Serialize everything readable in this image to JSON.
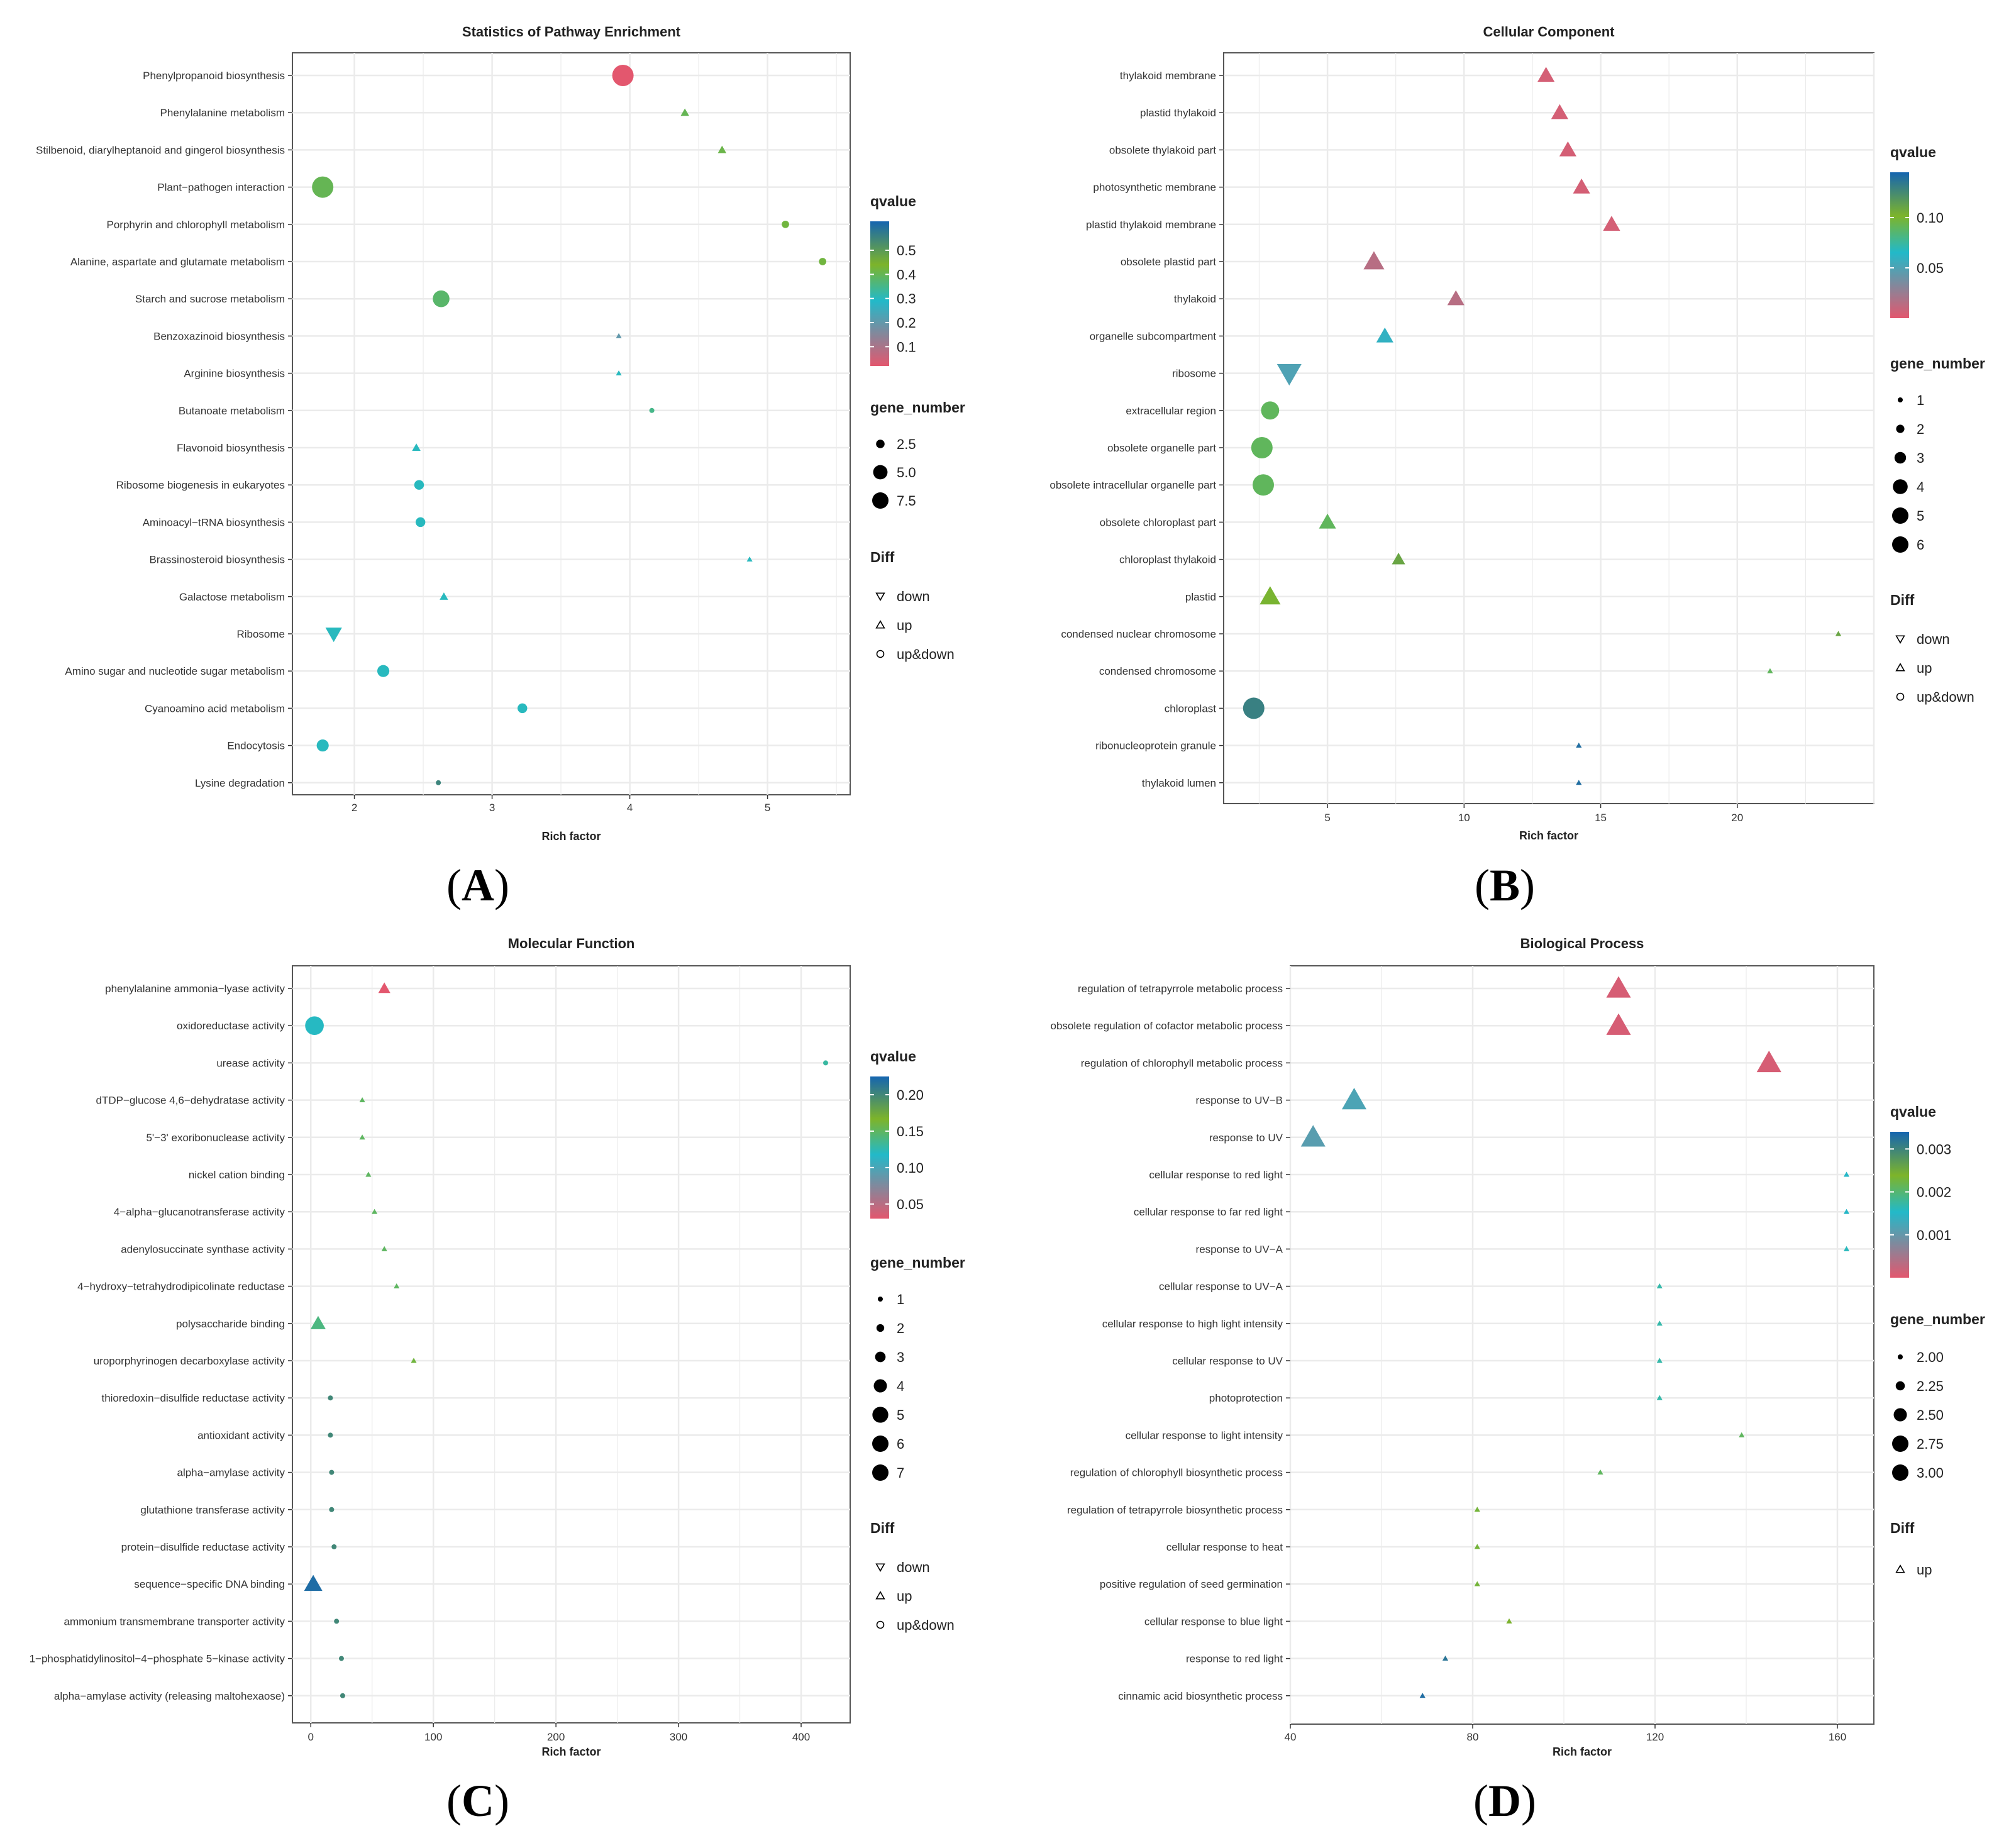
{
  "colors": {
    "q_high": "#1565b0",
    "q_upper": "#22b9c9",
    "q_mid": "#7db42a",
    "q_low": "#e3576e",
    "grid": "#ebebeb",
    "frame": "#555555"
  },
  "chart_data": [
    {
      "type": "scatter",
      "panel_label": "A",
      "title": "Statistics of Pathway Enrichment",
      "xlabel": "Rich factor",
      "xlim": [
        1.55,
        5.6
      ],
      "xticks": [
        2,
        3,
        4,
        5
      ],
      "categories": [
        "Phenylpropanoid biosynthesis",
        "Phenylalanine metabolism",
        "Stilbenoid, diarylheptanoid and gingerol biosynthesis",
        "Plant−pathogen interaction",
        "Porphyrin and chlorophyll metabolism",
        "Alanine, aspartate and glutamate metabolism",
        "Starch and sucrose metabolism",
        "Benzoxazinoid biosynthesis",
        "Arginine biosynthesis",
        "Butanoate metabolism",
        "Flavonoid biosynthesis",
        "Ribosome biogenesis in eukaryotes",
        "Aminoacyl−tRNA biosynthesis",
        "Brassinosteroid biosynthesis",
        "Galactose metabolism",
        "Ribosome",
        "Amino sugar and nucleotide sugar metabolism",
        "Cyanoamino acid metabolism",
        "Endocytosis",
        "Lysine degradation"
      ],
      "rich_factor": [
        3.95,
        4.4,
        4.67,
        1.77,
        5.13,
        5.4,
        2.63,
        3.92,
        3.92,
        4.16,
        2.45,
        2.47,
        2.48,
        4.87,
        2.65,
        1.85,
        2.21,
        3.22,
        1.77,
        2.61
      ],
      "gene_number": [
        8,
        2,
        2,
        8,
        2,
        2,
        6,
        1,
        1,
        1,
        2,
        3,
        3,
        1,
        2,
        5,
        4,
        3,
        4,
        1
      ],
      "qvalue": [
        0.02,
        0.4,
        0.41,
        0.4,
        0.42,
        0.42,
        0.38,
        0.2,
        0.3,
        0.35,
        0.3,
        0.3,
        0.3,
        0.3,
        0.3,
        0.3,
        0.3,
        0.3,
        0.3,
        0.55
      ],
      "diff": [
        "up&down",
        "up",
        "up",
        "up&down",
        "up&down",
        "up&down",
        "up&down",
        "up",
        "up",
        "up&down",
        "up",
        "up&down",
        "up&down",
        "up",
        "up",
        "down",
        "up&down",
        "up&down",
        "up&down",
        "up&down"
      ],
      "q_range": [
        0.02,
        0.62
      ],
      "size_range": [
        1,
        8
      ],
      "legend": {
        "qvalue_title": "qvalue",
        "qvalue_ticks": [
          0.5,
          0.4,
          0.3,
          0.2,
          0.1
        ],
        "qvalue_tick_labels": [
          "0.5",
          "0.4",
          "0.3",
          "0.2",
          "0.1"
        ],
        "size_title": "gene_number",
        "size_values": [
          2.5,
          5,
          7.5
        ],
        "size_labels": [
          "2.5",
          "5.0",
          "7.5"
        ],
        "diff_title": "Diff",
        "diff_items": [
          "down",
          "up",
          "up&down"
        ]
      }
    },
    {
      "type": "scatter",
      "panel_label": "B",
      "title": "Cellular Component",
      "xlabel": "Rich factor",
      "xlim": [
        1.2,
        25
      ],
      "xticks": [
        5,
        10,
        15,
        20
      ],
      "categories": [
        "thylakoid membrane",
        "plastid thylakoid",
        "obsolete thylakoid part",
        "photosynthetic membrane",
        "plastid thylakoid membrane",
        "obsolete plastid part",
        "thylakoid",
        "organelle subcompartment",
        "ribosome",
        "extracellular region",
        "obsolete organelle part",
        "obsolete intracellular organelle part",
        "obsolete chloroplast part",
        "chloroplast thylakoid",
        "plastid",
        "condensed nuclear chromosome",
        "condensed chromosome",
        "chloroplast",
        "ribonucleoprotein granule",
        "thylakoid lumen"
      ],
      "rich_factor": [
        13.0,
        13.5,
        13.8,
        14.3,
        15.4,
        6.7,
        9.7,
        7.1,
        3.6,
        2.9,
        2.6,
        2.65,
        5.0,
        7.6,
        2.9,
        23.7,
        21.2,
        2.3,
        14.2,
        14.2
      ],
      "gene_number": [
        4,
        4,
        4,
        4,
        4,
        5,
        4,
        4,
        6,
        5,
        6,
        6,
        4,
        3,
        5,
        1,
        1,
        6,
        1,
        1
      ],
      "qvalue": [
        0.005,
        0.005,
        0.005,
        0.005,
        0.005,
        0.015,
        0.015,
        0.06,
        0.05,
        0.09,
        0.09,
        0.09,
        0.09,
        0.11,
        0.1,
        0.11,
        0.09,
        0.13,
        0.14,
        0.14
      ],
      "diff": [
        "up",
        "up",
        "up",
        "up",
        "up",
        "up",
        "up",
        "up",
        "down",
        "up&down",
        "up&down",
        "up&down",
        "up",
        "up",
        "up",
        "up",
        "up",
        "up&down",
        "up",
        "up"
      ],
      "q_range": [
        0.0,
        0.145
      ],
      "size_range": [
        1,
        6
      ],
      "legend": {
        "qvalue_title": "qvalue",
        "qvalue_ticks": [
          0.1,
          0.05
        ],
        "qvalue_tick_labels": [
          "0.10",
          "0.05"
        ],
        "size_title": "gene_number",
        "size_values": [
          1,
          2,
          3,
          4,
          5,
          6
        ],
        "size_labels": [
          "1",
          "2",
          "3",
          "4",
          "5",
          "6"
        ],
        "diff_title": "Diff",
        "diff_items": [
          "down",
          "up",
          "up&down"
        ]
      }
    },
    {
      "type": "scatter",
      "panel_label": "C",
      "title": "Molecular Function",
      "xlabel": "Rich factor",
      "xlim": [
        -15,
        440
      ],
      "xticks": [
        0,
        100,
        200,
        300,
        400
      ],
      "categories": [
        "phenylalanine ammonia−lyase activity",
        "oxidoreductase activity",
        "urease activity",
        "dTDP−glucose 4,6−dehydratase activity",
        "5'−3' exoribonuclease activity",
        "nickel cation binding",
        "4−alpha−glucanotransferase activity",
        "adenylosuccinate synthase activity",
        "4−hydroxy−tetrahydrodipicolinate reductase",
        "polysaccharide binding",
        "uroporphyrinogen decarboxylase activity",
        "thioredoxin−disulfide reductase activity",
        "antioxidant activity",
        "alpha−amylase activity",
        "glutathione transferase activity",
        "protein−disulfide reductase activity",
        "sequence−specific DNA binding",
        "ammonium transmembrane transporter activity",
        "1−phosphatidylinositol−4−phosphate 5−kinase activity",
        "alpha−amylase activity (releasing maltohexaose)"
      ],
      "rich_factor": [
        60,
        3,
        420,
        42,
        42,
        47,
        52,
        60,
        70,
        6,
        84,
        16,
        16,
        17,
        17,
        19,
        2,
        21,
        25,
        26
      ],
      "gene_number": [
        3,
        6,
        1,
        1,
        1,
        1,
        1,
        1,
        1,
        4,
        1,
        1,
        1,
        1,
        1,
        1,
        5,
        1,
        1,
        1
      ],
      "qvalue": [
        0.03,
        0.12,
        0.13,
        0.15,
        0.15,
        0.15,
        0.15,
        0.15,
        0.15,
        0.14,
        0.16,
        0.2,
        0.2,
        0.2,
        0.2,
        0.2,
        0.22,
        0.2,
        0.2,
        0.2
      ],
      "diff": [
        "up",
        "up&down",
        "up&down",
        "up",
        "up",
        "up",
        "up",
        "up",
        "up",
        "up",
        "up",
        "up&down",
        "up&down",
        "up&down",
        "up&down",
        "up&down",
        "up",
        "up&down",
        "up&down",
        "up&down"
      ],
      "q_range": [
        0.03,
        0.225
      ],
      "size_range": [
        1,
        7
      ],
      "legend": {
        "qvalue_title": "qvalue",
        "qvalue_ticks": [
          0.2,
          0.15,
          0.1,
          0.05
        ],
        "qvalue_tick_labels": [
          "0.20",
          "0.15",
          "0.10",
          "0.05"
        ],
        "size_title": "gene_number",
        "size_values": [
          1,
          2,
          3,
          4,
          5,
          6,
          7
        ],
        "size_labels": [
          "1",
          "2",
          "3",
          "4",
          "5",
          "6",
          "7"
        ],
        "diff_title": "Diff",
        "diff_items": [
          "down",
          "up",
          "up&down"
        ]
      }
    },
    {
      "type": "scatter",
      "panel_label": "D",
      "title": "Biological Process",
      "xlabel": "Rich factor",
      "xlim": [
        40,
        168
      ],
      "xticks": [
        40,
        80,
        120,
        160
      ],
      "categories": [
        "regulation of tetrapyrrole metabolic process",
        "obsolete regulation of cofactor metabolic process",
        "regulation of chlorophyll metabolic process",
        "response to UV−B",
        "response to UV",
        "cellular response to red light",
        "cellular response to far red light",
        "response to UV−A",
        "cellular response to UV−A",
        "cellular response to high light intensity",
        "cellular response to UV",
        "photoprotection",
        "cellular response to light intensity",
        "regulation of chlorophyll biosynthetic process",
        "regulation of tetrapyrrole biosynthetic process",
        "cellular response to heat",
        "positive regulation of seed germination",
        "cellular response to blue light",
        "response to red light",
        "cinnamic acid biosynthetic process"
      ],
      "rich_factor": [
        112,
        112,
        145,
        54,
        45,
        162,
        162,
        162,
        121,
        121,
        121,
        121,
        139,
        108,
        81,
        81,
        81,
        88,
        74,
        69
      ],
      "gene_number": [
        3,
        3,
        3,
        3,
        3,
        2,
        2,
        2,
        2,
        2,
        2,
        2,
        2,
        2,
        2,
        2,
        2,
        2,
        2,
        2
      ],
      "qvalue": [
        0.0001,
        0.0001,
        0.0001,
        0.0012,
        0.0011,
        0.0015,
        0.0015,
        0.0016,
        0.0017,
        0.0017,
        0.0017,
        0.0017,
        0.0021,
        0.0021,
        0.0023,
        0.0023,
        0.0023,
        0.0024,
        0.0032,
        0.0033
      ],
      "diff": [
        "up",
        "up",
        "up",
        "up",
        "up",
        "up",
        "up",
        "up",
        "up",
        "up",
        "up",
        "up",
        "up",
        "up",
        "up",
        "up",
        "up",
        "up",
        "up",
        "up"
      ],
      "q_range": [
        0.0,
        0.0034
      ],
      "size_range": [
        2,
        3
      ],
      "legend": {
        "qvalue_title": "qvalue",
        "qvalue_ticks": [
          0.003,
          0.002,
          0.001
        ],
        "qvalue_tick_labels": [
          "0.003",
          "0.002",
          "0.001"
        ],
        "size_title": "gene_number",
        "size_values": [
          2,
          2.25,
          2.5,
          2.75,
          3
        ],
        "size_labels": [
          "2.00",
          "2.25",
          "2.50",
          "2.75",
          "3.00"
        ],
        "diff_title": "Diff",
        "diff_items": [
          "up"
        ]
      }
    }
  ]
}
